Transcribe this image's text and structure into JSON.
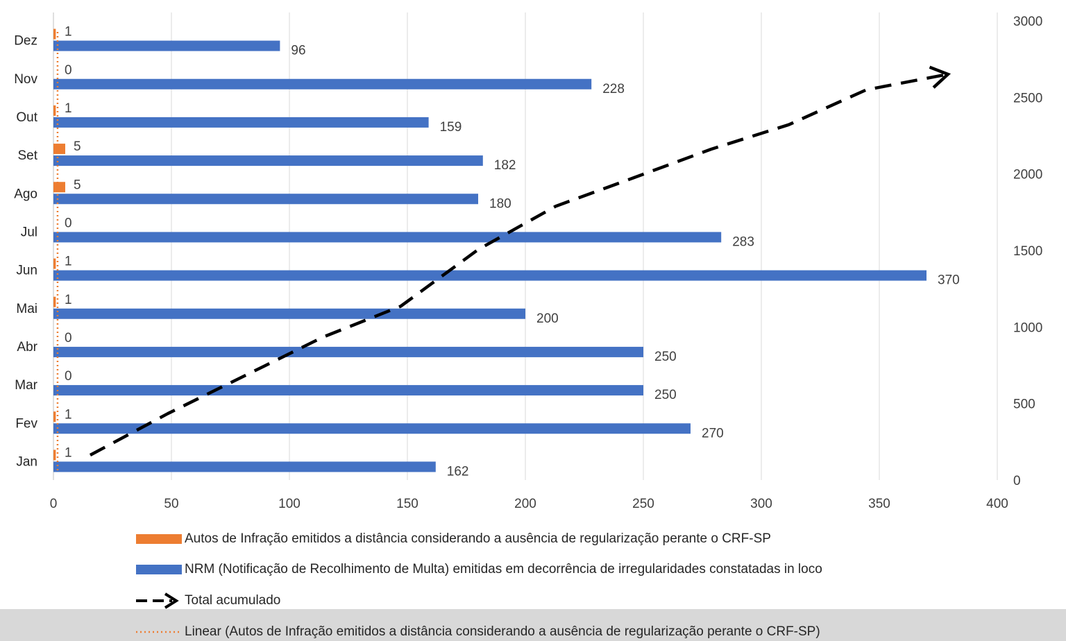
{
  "chart_data": {
    "type": "bar",
    "orientation": "horizontal",
    "categories": [
      "Jan",
      "Fev",
      "Mar",
      "Abr",
      "Mai",
      "Jun",
      "Jul",
      "Ago",
      "Set",
      "Out",
      "Nov",
      "Dez"
    ],
    "series": [
      {
        "name": "Autos de Infração emitidos a distância considerando a ausência de regularização perante o CRF-SP",
        "color": "#ED7D31",
        "values": [
          1,
          1,
          0,
          0,
          1,
          1,
          0,
          5,
          5,
          1,
          0,
          1
        ]
      },
      {
        "name": "NRM (Notificação de Recolhimento de Multa) emitidas em decorrência de irregularidades constatadas in loco",
        "color": "#4472C4",
        "values": [
          162,
          270,
          250,
          250,
          200,
          370,
          283,
          180,
          182,
          159,
          228,
          96
        ]
      }
    ],
    "cumulative_series": {
      "name": "Total acumulado",
      "color": "#000000",
      "style": "dashed-arrow",
      "axis": "secondary"
    },
    "trendline": {
      "name": "Linear (Autos de Infração emitidos a distância considerando a ausência de regularização perante o CRF-SP)",
      "color": "#ED7D31",
      "style": "dotted",
      "value": 1.75
    },
    "x_axis": {
      "ticks": [
        0,
        50,
        100,
        150,
        200,
        250,
        300,
        350,
        400
      ],
      "range": [
        0,
        400
      ],
      "grid": true
    },
    "secondary_axis": {
      "ticks": [
        0,
        500,
        1000,
        1500,
        2000,
        2500,
        3000
      ],
      "range": [
        0,
        3000
      ]
    },
    "legend_position": "bottom"
  }
}
